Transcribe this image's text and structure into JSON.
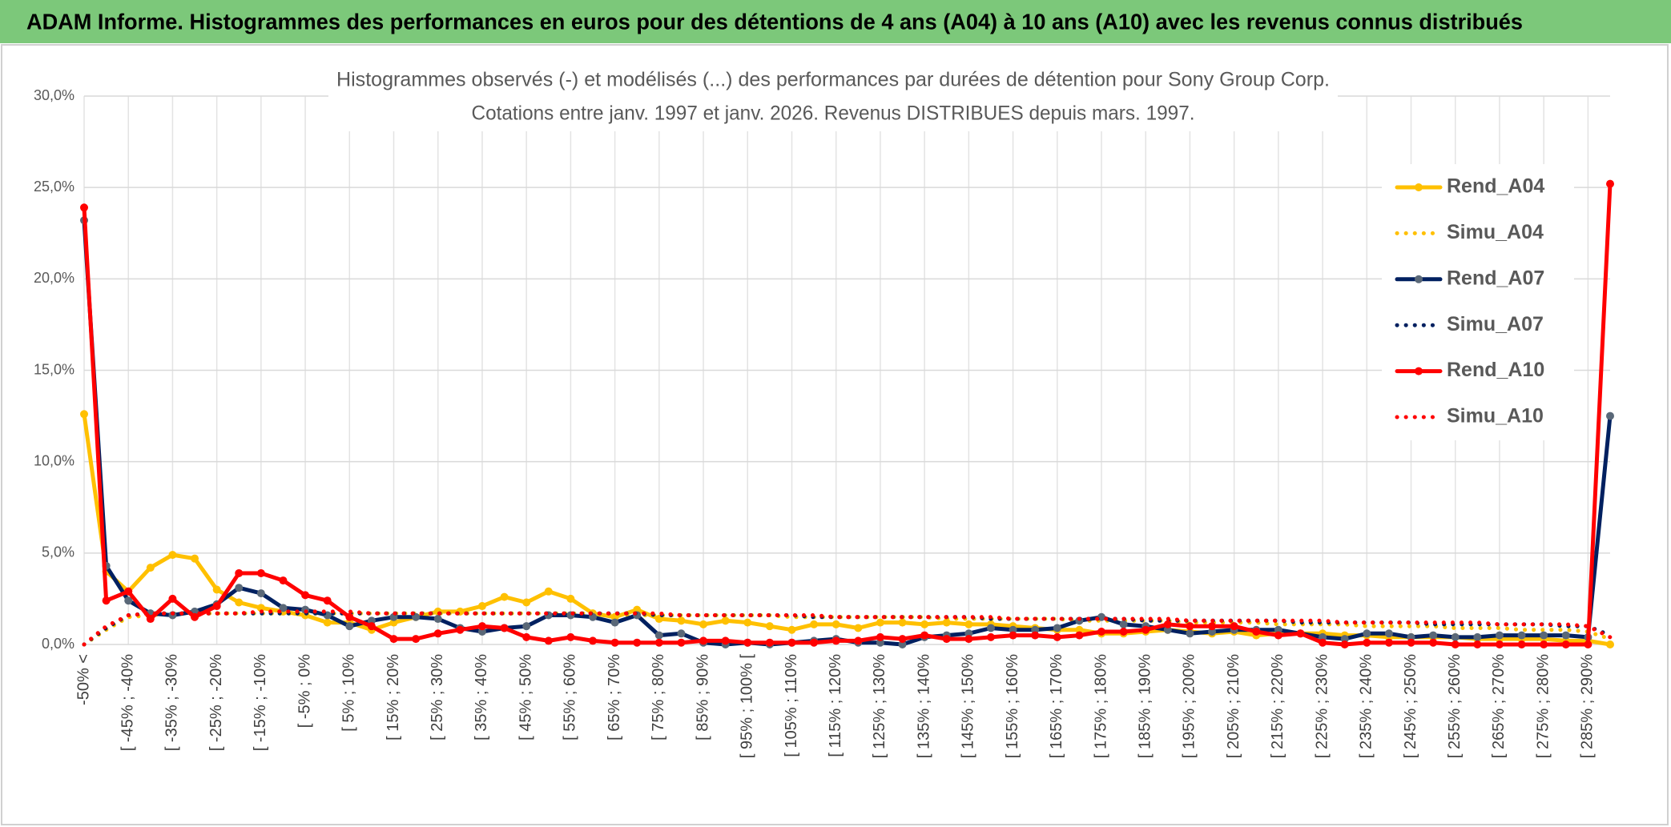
{
  "header": {
    "title": "ADAM Informe. Histogrammes des performances en euros pour des détentions de 4 ans (A04) à 10 ans (A10) avec les revenus connus distribués"
  },
  "chart_data": {
    "type": "line",
    "title": [
      "Histogrammes observés (-) et modélisés (...) des performances par durées de détention pour Sony Group Corp.",
      "Cotations entre janv. 1997 et janv. 2026. Revenus DISTRIBUES depuis mars. 1997."
    ],
    "categories": [
      "-50% <",
      null,
      "[ -45% ; -40%",
      null,
      "[ -35% ; -30%",
      null,
      "[ -25% ; -20%",
      null,
      "[ -15% ; -10%",
      null,
      "[ -5% ; 0%",
      null,
      "[ 5% ; 10%",
      null,
      "[ 15% ; 20%",
      null,
      "[ 25% ; 30%",
      null,
      "[ 35% ; 40%",
      null,
      "[ 45% ; 50%",
      null,
      "[ 55% ; 60%",
      null,
      "[ 65% ; 70%",
      null,
      "[ 75% ; 80%",
      null,
      "[ 85% ; 90%",
      null,
      "[ 95% ; 100% [",
      null,
      "[ 105% ; 110%",
      null,
      "[ 115% ; 120%",
      null,
      "[ 125% ; 130%",
      null,
      "[ 135% ; 140%",
      null,
      "[ 145% ; 150%",
      null,
      "[ 155% ; 160%",
      null,
      "[ 165% ; 170%",
      null,
      "[ 175% ; 180%",
      null,
      "[ 185% ; 190%",
      null,
      "[ 195% ; 200%",
      null,
      "[ 205% ; 210%",
      null,
      "[ 215% ; 220%",
      null,
      "[ 225% ; 230%",
      null,
      "[ 235% ; 240%",
      null,
      "[ 245% ; 250%",
      null,
      "[ 255% ; 260%",
      null,
      "[ 265% ; 270%",
      null,
      "[ 275% ; 280%",
      null,
      "[ 285% ; 290%",
      null
    ],
    "ylim": [
      0,
      30
    ],
    "yticks": [
      {
        "value": 0,
        "label": "0,0%"
      },
      {
        "value": 5,
        "label": "5,0%"
      },
      {
        "value": 10,
        "label": "10,0%"
      },
      {
        "value": 15,
        "label": "15,0%"
      },
      {
        "value": 20,
        "label": "20,0%"
      },
      {
        "value": 25,
        "label": "25,0%"
      },
      {
        "value": 30,
        "label": "30,0%"
      }
    ],
    "grid": true,
    "legend": "right",
    "series": [
      {
        "name": "Rend_A04",
        "color": "#ffc000",
        "line_style": "solid",
        "markers": true,
        "marker_color": "#ffc000",
        "values": [
          12.6,
          4.0,
          2.9,
          4.2,
          4.9,
          4.7,
          3.0,
          2.3,
          2.0,
          1.8,
          1.6,
          1.2,
          1.2,
          0.8,
          1.2,
          1.5,
          1.8,
          1.8,
          2.1,
          2.6,
          2.3,
          2.9,
          2.5,
          1.7,
          1.5,
          1.9,
          1.4,
          1.3,
          1.1,
          1.3,
          1.2,
          1.0,
          0.8,
          1.1,
          1.1,
          0.9,
          1.2,
          1.2,
          1.1,
          1.2,
          1.1,
          1.1,
          1.0,
          0.9,
          0.8,
          0.8,
          0.6,
          0.6,
          0.7,
          0.8,
          0.7,
          0.6,
          0.7,
          0.5,
          0.6,
          0.6,
          0.6,
          0.5,
          0.5,
          0.4,
          0.4,
          0.4,
          0.4,
          0.3,
          0.3,
          0.3,
          0.3,
          0.2,
          0.2,
          0.0
        ]
      },
      {
        "name": "Simu_A04",
        "color": "#ffc000",
        "line_style": "dotted",
        "markers": false,
        "values": [
          0,
          0.8,
          1.5,
          1.6,
          1.7,
          1.7,
          1.7,
          1.7,
          1.7,
          1.7,
          1.7,
          1.7,
          1.7,
          1.7,
          1.7,
          1.7,
          1.7,
          1.7,
          1.7,
          1.7,
          1.7,
          1.7,
          1.7,
          1.7,
          1.6,
          1.6,
          1.6,
          1.6,
          1.6,
          1.6,
          1.6,
          1.6,
          1.5,
          1.5,
          1.5,
          1.5,
          1.5,
          1.5,
          1.5,
          1.4,
          1.4,
          1.4,
          1.4,
          1.4,
          1.4,
          1.3,
          1.3,
          1.3,
          1.3,
          1.3,
          1.2,
          1.2,
          1.2,
          1.2,
          1.1,
          1.1,
          1.1,
          1.1,
          1.0,
          1.0,
          1.0,
          1.0,
          0.9,
          0.9,
          0.9,
          0.8,
          0.8,
          0.8,
          0.7,
          0.3
        ]
      },
      {
        "name": "Rend_A07",
        "color": "#002060",
        "line_style": "solid",
        "markers": true,
        "marker_color": "#5a6878",
        "values": [
          23.2,
          4.3,
          2.4,
          1.7,
          1.6,
          1.8,
          2.2,
          3.1,
          2.8,
          2.0,
          1.9,
          1.6,
          1.0,
          1.3,
          1.5,
          1.5,
          1.4,
          0.9,
          0.7,
          0.9,
          1.0,
          1.6,
          1.6,
          1.5,
          1.2,
          1.6,
          0.5,
          0.6,
          0.1,
          0.0,
          0.1,
          0.0,
          0.1,
          0.2,
          0.3,
          0.1,
          0.1,
          0.0,
          0.4,
          0.5,
          0.6,
          0.9,
          0.8,
          0.8,
          0.9,
          1.3,
          1.5,
          1.1,
          1.0,
          0.8,
          0.6,
          0.7,
          0.8,
          0.8,
          0.8,
          0.6,
          0.4,
          0.3,
          0.6,
          0.6,
          0.4,
          0.5,
          0.4,
          0.4,
          0.5,
          0.5,
          0.5,
          0.5,
          0.4,
          12.5
        ]
      },
      {
        "name": "Simu_A07",
        "color": "#002060",
        "line_style": "dotted",
        "markers": false,
        "values": [
          0,
          0.9,
          1.6,
          1.7,
          1.7,
          1.7,
          1.7,
          1.7,
          1.7,
          1.7,
          1.7,
          1.7,
          1.7,
          1.7,
          1.7,
          1.7,
          1.7,
          1.7,
          1.7,
          1.7,
          1.7,
          1.7,
          1.7,
          1.7,
          1.7,
          1.7,
          1.6,
          1.6,
          1.6,
          1.6,
          1.6,
          1.6,
          1.6,
          1.5,
          1.5,
          1.5,
          1.5,
          1.5,
          1.5,
          1.5,
          1.5,
          1.4,
          1.4,
          1.4,
          1.4,
          1.4,
          1.4,
          1.4,
          1.3,
          1.3,
          1.3,
          1.3,
          1.3,
          1.3,
          1.3,
          1.2,
          1.2,
          1.2,
          1.2,
          1.2,
          1.2,
          1.1,
          1.1,
          1.1,
          1.1,
          1.1,
          1.1,
          1.0,
          1.0,
          0.5
        ]
      },
      {
        "name": "Rend_A10",
        "color": "#ff0000",
        "line_style": "solid",
        "markers": true,
        "marker_color": "#ff0000",
        "values": [
          23.9,
          2.4,
          2.9,
          1.4,
          2.5,
          1.5,
          2.1,
          3.9,
          3.9,
          3.5,
          2.7,
          2.4,
          1.5,
          1.0,
          0.3,
          0.3,
          0.6,
          0.8,
          1.0,
          0.9,
          0.4,
          0.2,
          0.4,
          0.2,
          0.1,
          0.1,
          0.1,
          0.1,
          0.2,
          0.2,
          0.1,
          0.1,
          0.1,
          0.1,
          0.2,
          0.2,
          0.4,
          0.3,
          0.5,
          0.3,
          0.3,
          0.4,
          0.5,
          0.5,
          0.4,
          0.5,
          0.7,
          0.7,
          0.8,
          1.1,
          1.0,
          1.0,
          1.0,
          0.7,
          0.5,
          0.6,
          0.1,
          0.0,
          0.1,
          0.1,
          0.1,
          0.1,
          0.0,
          0.0,
          0.0,
          0.0,
          0.0,
          0.0,
          0.0,
          25.2
        ]
      },
      {
        "name": "Simu_A10",
        "color": "#ff0000",
        "line_style": "dotted",
        "markers": false,
        "values": [
          0,
          1.0,
          1.6,
          1.7,
          1.7,
          1.7,
          1.7,
          1.7,
          1.8,
          1.8,
          1.8,
          1.8,
          1.8,
          1.7,
          1.7,
          1.7,
          1.7,
          1.7,
          1.7,
          1.7,
          1.7,
          1.7,
          1.7,
          1.7,
          1.7,
          1.7,
          1.7,
          1.6,
          1.6,
          1.6,
          1.6,
          1.6,
          1.6,
          1.6,
          1.5,
          1.5,
          1.5,
          1.5,
          1.5,
          1.5,
          1.5,
          1.5,
          1.4,
          1.4,
          1.4,
          1.4,
          1.4,
          1.4,
          1.4,
          1.4,
          1.3,
          1.3,
          1.3,
          1.3,
          1.3,
          1.3,
          1.3,
          1.2,
          1.2,
          1.2,
          1.2,
          1.2,
          1.2,
          1.2,
          1.1,
          1.1,
          1.1,
          1.1,
          1.0,
          0.4
        ]
      }
    ]
  }
}
